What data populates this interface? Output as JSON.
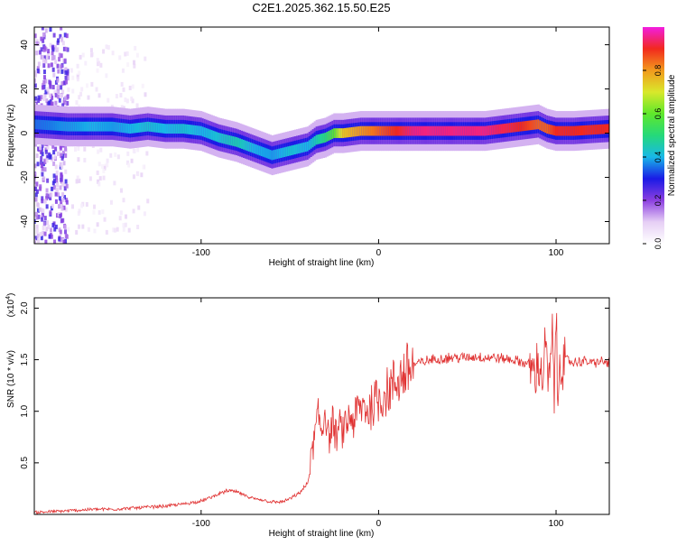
{
  "figure_title": "C2E1.2025.362.15.50.E25",
  "colorbar": {
    "label": "Normalized spectral amplitude",
    "ticks": [
      "0.0",
      "0.2",
      "0.4",
      "0.6",
      "0.8"
    ],
    "tick_values": [
      0.0,
      0.2,
      0.4,
      0.6,
      0.8
    ],
    "range": [
      0,
      1
    ]
  },
  "colors": {
    "snr_line": "#e03131",
    "axis": "#000000",
    "background": "#ffffff"
  },
  "chart_data": [
    {
      "type": "heatmap",
      "name": "spectrogram",
      "title": "C2E1.2025.362.15.50.E25",
      "xlabel": "Height of straight line (km)",
      "ylabel": "Frequency (Hz)",
      "xlim": [
        -194,
        130
      ],
      "ylim": [
        -50,
        48
      ],
      "x_ticks": [
        "-100",
        "0",
        "100"
      ],
      "x_tick_values": [
        -100,
        0,
        100
      ],
      "y_ticks": [
        "-40",
        "-20",
        "0",
        "20",
        "40"
      ],
      "y_tick_values": [
        -40,
        -20,
        0,
        20,
        40
      ],
      "ridge": {
        "x": [
          -194,
          -175,
          -160,
          -150,
          -140,
          -130,
          -120,
          -110,
          -100,
          -90,
          -80,
          -70,
          -60,
          -50,
          -40,
          -35,
          -30,
          -25,
          -20,
          -10,
          0,
          10,
          20,
          40,
          60,
          80,
          90,
          95,
          100,
          110,
          130
        ],
        "freq": [
          4,
          3,
          3,
          3,
          2,
          3,
          2,
          2,
          1,
          -2,
          -4,
          -7,
          -10,
          -8,
          -6,
          -3,
          -2,
          0,
          0,
          1,
          1,
          1,
          1,
          1,
          1,
          3,
          4,
          2,
          1,
          1,
          2
        ],
        "amplitude": [
          0.35,
          0.38,
          0.4,
          0.38,
          0.4,
          0.42,
          0.4,
          0.42,
          0.4,
          0.42,
          0.45,
          0.4,
          0.38,
          0.42,
          0.4,
          0.45,
          0.5,
          0.6,
          0.75,
          0.8,
          0.85,
          0.9,
          0.95,
          0.95,
          0.95,
          0.9,
          0.85,
          0.85,
          0.9,
          0.9,
          0.9
        ]
      },
      "noise_regions": [
        {
          "x_range": [
            -194,
            -175
          ],
          "freq_range": [
            -50,
            48
          ],
          "amplitude": 0.15
        },
        {
          "x_range": [
            -175,
            -130
          ],
          "freq_range": [
            -45,
            40
          ],
          "amplitude": 0.05
        }
      ]
    },
    {
      "type": "line",
      "name": "snr",
      "xlabel": "Height of straight line (km)",
      "ylabel": "SNR (10 * v/v)",
      "y_multiplier_label": "(x10",
      "y_multiplier_exp": "4",
      "xlim": [
        -194,
        130
      ],
      "ylim": [
        0,
        2.1
      ],
      "x_ticks": [
        "-100",
        "0",
        "100"
      ],
      "x_tick_values": [
        -100,
        0,
        100
      ],
      "y_ticks": [
        "0.5",
        "1.0",
        "1.5",
        "2.0"
      ],
      "y_tick_values": [
        0.5,
        1.0,
        1.5,
        2.0
      ],
      "series": [
        {
          "name": "SNR",
          "x": [
            -194,
            -180,
            -170,
            -160,
            -150,
            -140,
            -130,
            -120,
            -110,
            -100,
            -95,
            -90,
            -85,
            -80,
            -75,
            -70,
            -65,
            -60,
            -55,
            -50,
            -45,
            -40,
            -38,
            -36,
            -34,
            -32,
            -30,
            -28,
            -26,
            -24,
            -22,
            -20,
            -18,
            -16,
            -14,
            -12,
            -10,
            -8,
            -6,
            -4,
            -2,
            0,
            2,
            4,
            6,
            8,
            10,
            12,
            14,
            16,
            18,
            20,
            25,
            30,
            35,
            40,
            45,
            50,
            55,
            60,
            65,
            70,
            75,
            80,
            85,
            88,
            90,
            92,
            94,
            96,
            98,
            99,
            100,
            101,
            102,
            104,
            106,
            110,
            115,
            120,
            125,
            130
          ],
          "values": [
            0.02,
            0.03,
            0.04,
            0.05,
            0.05,
            0.06,
            0.07,
            0.08,
            0.1,
            0.13,
            0.16,
            0.2,
            0.23,
            0.22,
            0.18,
            0.15,
            0.14,
            0.12,
            0.12,
            0.15,
            0.2,
            0.3,
            0.55,
            0.75,
            0.95,
            0.8,
            1.05,
            0.7,
            0.9,
            0.75,
            0.85,
            0.8,
            0.88,
            0.95,
            0.9,
            1.0,
            1.02,
            1.05,
            1.0,
            1.05,
            1.1,
            1.12,
            1.15,
            1.18,
            1.22,
            1.25,
            1.3,
            1.33,
            1.36,
            1.39,
            1.42,
            1.45,
            1.48,
            1.5,
            1.51,
            1.52,
            1.52,
            1.52,
            1.53,
            1.52,
            1.52,
            1.51,
            1.5,
            1.48,
            1.45,
            1.35,
            1.5,
            1.3,
            1.6,
            1.25,
            1.7,
            1.1,
            2.05,
            0.9,
            1.6,
            1.45,
            1.5,
            1.47,
            1.49,
            1.47,
            1.48,
            1.47
          ]
        }
      ]
    }
  ]
}
